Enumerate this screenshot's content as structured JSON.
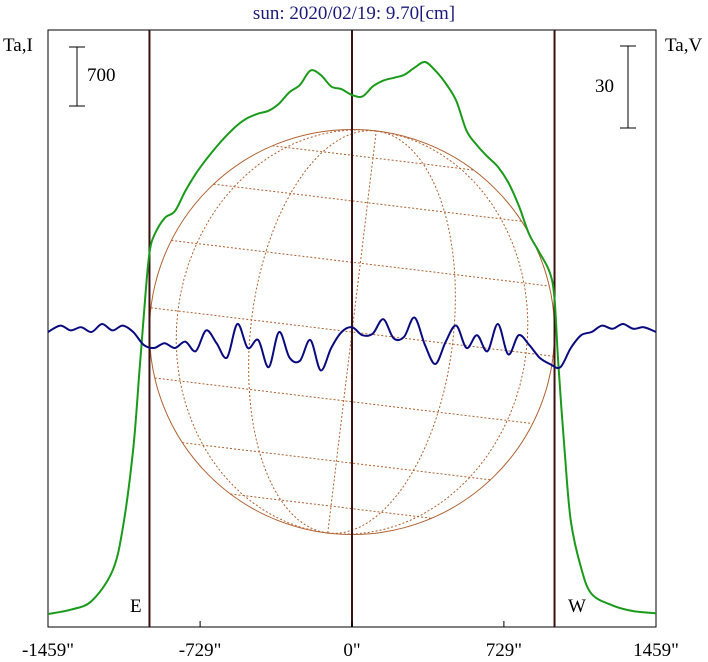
{
  "chart_data": {
    "type": "line",
    "title": "sun: 2020/02/19: 9.70[cm]",
    "ylabel_left": "Ta,I",
    "ylabel_right": "Ta,V",
    "scale_left": "700",
    "scale_right": "30",
    "limb_labels": {
      "east": "E",
      "west": "W"
    },
    "x_ticks": [
      {
        "value": -1459,
        "label": "-1459\""
      },
      {
        "value": -729,
        "label": "-729\""
      },
      {
        "value": 0,
        "label": "0\""
      },
      {
        "value": 729,
        "label": "729\""
      },
      {
        "value": 1459,
        "label": "1459\""
      }
    ],
    "xlim": [
      -1459,
      1459
    ],
    "limb_lines": [
      -972,
      0,
      972
    ],
    "colors": {
      "intensity": "#1a9a1a",
      "polarization": "#0a0a80",
      "disk": "#b06030",
      "limb": "#3a1010",
      "title": "#1a1a7a"
    },
    "series": [
      {
        "name": "Ta,I",
        "x": [
          -1459,
          -1350,
          -1250,
          -1150,
          -1100,
          -1050,
          -1020,
          -990,
          -972,
          -950,
          -900,
          -850,
          -800,
          -750,
          -700,
          -650,
          -600,
          -550,
          -500,
          -450,
          -400,
          -350,
          -300,
          -250,
          -200,
          -150,
          -100,
          -50,
          0,
          50,
          100,
          150,
          200,
          250,
          300,
          350,
          400,
          450,
          500,
          550,
          600,
          650,
          700,
          750,
          800,
          850,
          900,
          950,
          972,
          990,
          1020,
          1050,
          1100,
          1150,
          1250,
          1350,
          1459
        ],
        "y": [
          0,
          30,
          90,
          300,
          600,
          1150,
          1700,
          2250,
          2520,
          2640,
          2760,
          2810,
          2950,
          3070,
          3170,
          3260,
          3340,
          3410,
          3460,
          3490,
          3510,
          3560,
          3640,
          3690,
          3790,
          3760,
          3680,
          3660,
          3620,
          3610,
          3680,
          3720,
          3740,
          3760,
          3810,
          3850,
          3790,
          3700,
          3580,
          3370,
          3270,
          3190,
          3120,
          3010,
          2850,
          2650,
          2520,
          2380,
          2200,
          1750,
          1150,
          650,
          320,
          140,
          60,
          20,
          5
        ]
      },
      {
        "name": "Ta,V",
        "x": [
          -1459,
          -1400,
          -1350,
          -1300,
          -1250,
          -1200,
          -1150,
          -1100,
          -1050,
          -1000,
          -950,
          -900,
          -850,
          -800,
          -750,
          -700,
          -650,
          -600,
          -550,
          -500,
          -450,
          -400,
          -350,
          -300,
          -250,
          -200,
          -150,
          -100,
          -50,
          0,
          50,
          100,
          150,
          200,
          250,
          300,
          350,
          400,
          450,
          500,
          550,
          600,
          650,
          700,
          750,
          800,
          850,
          900,
          950,
          1000,
          1050,
          1100,
          1150,
          1200,
          1250,
          1300,
          1350,
          1400,
          1459
        ],
        "y": [
          0,
          4,
          1,
          3,
          0,
          5,
          1,
          4,
          0,
          -8,
          -10,
          -7,
          -10,
          -6,
          -12,
          1,
          -7,
          -16,
          5,
          -10,
          -5,
          -22,
          0,
          -16,
          -18,
          -5,
          -24,
          -10,
          0,
          3,
          -2,
          -1,
          8,
          -4,
          -3,
          9,
          -8,
          -20,
          -6,
          4,
          -10,
          -2,
          -12,
          5,
          -14,
          -2,
          -8,
          -16,
          -20,
          -22,
          -10,
          -2,
          0,
          4,
          2,
          5,
          2,
          3,
          0
        ]
      }
    ]
  }
}
